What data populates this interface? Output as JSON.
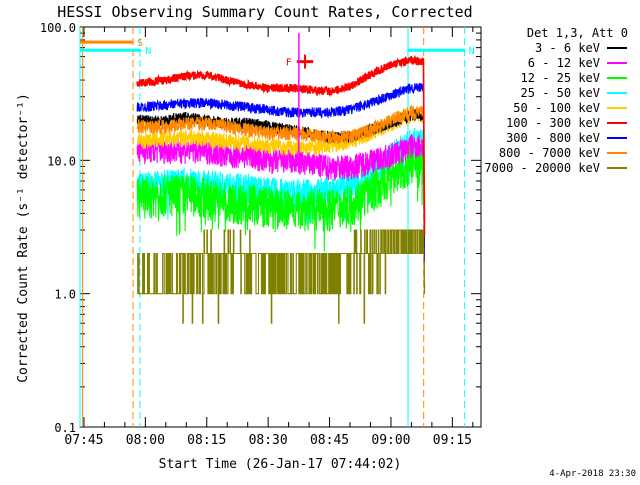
{
  "chart_data": {
    "type": "line",
    "title": "HESSI Observing Summary Count Rates, Corrected",
    "xlabel": "Start Time (26-Jan-17 07:44:02)",
    "ylabel": "Corrected Count Rate (s⁻¹ detector⁻¹)",
    "yscale": "log",
    "ylim": [
      0.1,
      100.0
    ],
    "xlim": [
      "07:44:02",
      "09:22:00"
    ],
    "x_ticks": [
      "07:45",
      "08:00",
      "08:15",
      "08:30",
      "08:45",
      "09:00",
      "09:15"
    ],
    "y_ticks": [
      "0.1",
      "1.0",
      "10.0",
      "100.0"
    ],
    "y_tick_values": [
      0.1,
      1,
      10,
      100
    ],
    "grid": false,
    "legend_position": "right",
    "legend_header": "Det 1,3, Att 0",
    "date_stamp": "4-Apr-2018 23:30",
    "times": [
      "07:58",
      "08:05",
      "08:10",
      "08:15",
      "08:20",
      "08:25",
      "08:30",
      "08:35",
      "08:40",
      "08:45",
      "08:50",
      "08:55",
      "09:00",
      "09:05",
      "09:08"
    ],
    "series": [
      {
        "name": "3 - 6 keV",
        "color": "#000000",
        "values": [
          20,
          20,
          21,
          20,
          19,
          19,
          18,
          17,
          16,
          15,
          15,
          17,
          19,
          22,
          22
        ]
      },
      {
        "name": "6 - 12 keV",
        "color": "#ff00ff",
        "values": [
          12,
          12,
          12,
          12,
          11,
          11,
          10,
          10,
          9.5,
          9,
          9,
          10,
          11,
          13,
          13
        ]
      },
      {
        "name": "12 - 25 keV",
        "color": "#00ff00",
        "values": [
          5.5,
          5.8,
          5.8,
          5.5,
          5,
          5,
          4.7,
          4.5,
          4.5,
          4.5,
          4.8,
          6,
          8,
          10,
          10
        ]
      },
      {
        "name": "25 - 50 keV",
        "color": "#00ffff",
        "values": [
          6.5,
          6.8,
          7,
          6.8,
          6.5,
          6.4,
          6,
          5.8,
          5.8,
          6,
          6.5,
          8,
          11,
          14,
          14
        ]
      },
      {
        "name": "50 - 100 keV",
        "color": "#ffcc00",
        "values": [
          14,
          14.5,
          15,
          14.5,
          14,
          13.5,
          13,
          12.5,
          12.5,
          13,
          14,
          16,
          19,
          22,
          22
        ]
      },
      {
        "name": "100 - 300 keV",
        "color": "#ff0000",
        "values": [
          38,
          40,
          43,
          44,
          40,
          37,
          35,
          35,
          34,
          33,
          36,
          44,
          52,
          56,
          55
        ]
      },
      {
        "name": "300 - 800 keV",
        "color": "#0000ff",
        "values": [
          25,
          26,
          27,
          27,
          26,
          25,
          24,
          23,
          23,
          23,
          24,
          27,
          31,
          35,
          35
        ]
      },
      {
        "name": "800 - 7000 keV",
        "color": "#ff8800",
        "values": [
          18,
          18,
          19,
          19,
          18,
          17,
          16,
          16,
          15.5,
          15,
          15,
          17,
          20,
          23,
          23
        ]
      },
      {
        "name": "7000 - 20000 keV",
        "color": "#808000",
        "values": [
          1,
          1,
          1.5,
          1.8,
          1.8,
          1.8,
          1.7,
          1.5,
          1.5,
          1.6,
          1.8,
          2,
          2.3,
          2.6,
          2.6
        ]
      }
    ],
    "flags": [
      {
        "label": "S",
        "color": "#ff8800",
        "start": "07:44:02",
        "end": "07:57:00",
        "level": 77
      },
      {
        "label": "N",
        "color": "#00ffff",
        "start": "07:44:02",
        "end": "07:59:00",
        "level": 67
      },
      {
        "label": "N",
        "color": "#00ffff",
        "start": "09:04:00",
        "end": "09:18:00",
        "level": 67
      },
      {
        "label": "F",
        "color": "#ff0000",
        "start": "08:37:00",
        "end": "08:41:00",
        "level": 55
      }
    ],
    "vlines": [
      {
        "time": "07:44:02",
        "color": "#00ffff",
        "style": "solid"
      },
      {
        "time": "07:44:40",
        "color": "#ff8800",
        "style": "solid"
      },
      {
        "time": "07:57:00",
        "color": "#ff8800",
        "style": "dashed"
      },
      {
        "time": "07:58:40",
        "color": "#00ffff",
        "style": "dashed"
      },
      {
        "time": "09:04:10",
        "color": "#00ffff",
        "style": "solid"
      },
      {
        "time": "09:08:00",
        "color": "#ff8800",
        "style": "dashed"
      },
      {
        "time": "09:18:00",
        "color": "#00ffff",
        "style": "dashed"
      }
    ]
  }
}
